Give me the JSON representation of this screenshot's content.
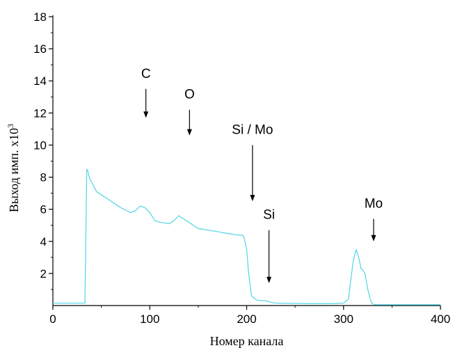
{
  "chart_data": {
    "type": "line",
    "xlabel": "Номер канала",
    "ylabel": "Выход имп. х10",
    "ylabel_exponent": "3",
    "xlim": [
      0,
      400
    ],
    "ylim": [
      0,
      18
    ],
    "x_ticks": [
      "0",
      "100",
      "200",
      "300",
      "400"
    ],
    "y_ticks": [
      "2",
      "4",
      "6",
      "8",
      "10",
      "12",
      "14",
      "16",
      "18"
    ],
    "grid": false,
    "line_color": "#5ad8e6",
    "series": [
      {
        "x": [
          0,
          20,
          33,
          34,
          35,
          36,
          38,
          40,
          45,
          50,
          60,
          70,
          80,
          85,
          90,
          95,
          100,
          105,
          110,
          120,
          125,
          130,
          135,
          140,
          150,
          160,
          170,
          180,
          190,
          195,
          197,
          200,
          202,
          205,
          210,
          215,
          220,
          225,
          230,
          260,
          290,
          300,
          305,
          310,
          313,
          316,
          318,
          320,
          322,
          325,
          328,
          330,
          333,
          340,
          360,
          380,
          400
        ],
        "y": [
          0.15,
          0.15,
          0.15,
          4.0,
          8.5,
          8.4,
          7.9,
          7.7,
          7.1,
          6.9,
          6.5,
          6.1,
          5.8,
          5.9,
          6.2,
          6.1,
          5.8,
          5.3,
          5.2,
          5.1,
          5.3,
          5.6,
          5.4,
          5.2,
          4.8,
          4.7,
          4.6,
          4.5,
          4.4,
          4.4,
          4.3,
          3.5,
          2.0,
          0.6,
          0.35,
          0.3,
          0.3,
          0.2,
          0.15,
          0.12,
          0.12,
          0.15,
          0.4,
          2.8,
          3.5,
          2.9,
          2.3,
          2.2,
          2.0,
          1.0,
          0.3,
          0.1,
          0.05,
          0.05,
          0.05,
          0.05,
          0.05
        ]
      }
    ],
    "annotations": [
      {
        "label": "C",
        "arrow_x": 96,
        "arrow_from_y": 13.5,
        "arrow_to_y": 11.7
      },
      {
        "label": "O",
        "arrow_x": 141,
        "arrow_from_y": 12.2,
        "arrow_to_y": 10.6
      },
      {
        "label": "Si / Mo",
        "arrow_x": 206,
        "arrow_from_y": 10.0,
        "arrow_to_y": 6.5
      },
      {
        "label": "Si",
        "arrow_x": 223,
        "arrow_from_y": 4.7,
        "arrow_to_y": 1.4
      },
      {
        "label": "Mo",
        "arrow_x": 331,
        "arrow_from_y": 5.4,
        "arrow_to_y": 4.0
      }
    ]
  }
}
